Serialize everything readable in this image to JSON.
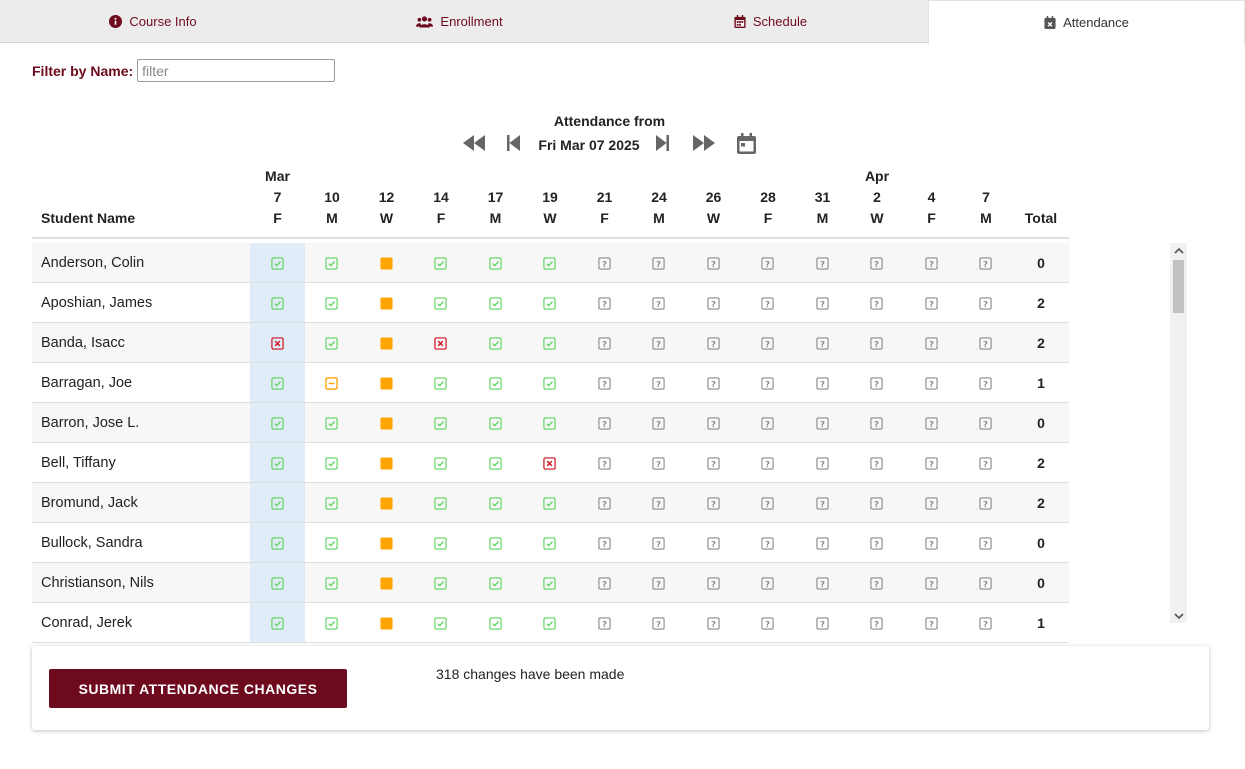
{
  "tabs": [
    {
      "label": "Course Info",
      "icon": "info-circle-icon"
    },
    {
      "label": "Enrollment",
      "icon": "users-icon"
    },
    {
      "label": "Schedule",
      "icon": "calendar-icon"
    },
    {
      "label": "Attendance",
      "icon": "calendar-x-icon",
      "active": true
    }
  ],
  "filter": {
    "label": "Filter by Name:",
    "placeholder": "filter",
    "value": ""
  },
  "nav": {
    "title": "Attendance from",
    "date": "Fri Mar 07 2025"
  },
  "table": {
    "name_header": "Student Name",
    "total_header": "Total",
    "dates": [
      {
        "month": "Mar",
        "day": "7",
        "dow": "F"
      },
      {
        "month": "",
        "day": "10",
        "dow": "M"
      },
      {
        "month": "",
        "day": "12",
        "dow": "W"
      },
      {
        "month": "",
        "day": "14",
        "dow": "F"
      },
      {
        "month": "",
        "day": "17",
        "dow": "M"
      },
      {
        "month": "",
        "day": "19",
        "dow": "W"
      },
      {
        "month": "",
        "day": "21",
        "dow": "F"
      },
      {
        "month": "",
        "day": "24",
        "dow": "M"
      },
      {
        "month": "",
        "day": "26",
        "dow": "W"
      },
      {
        "month": "",
        "day": "28",
        "dow": "F"
      },
      {
        "month": "",
        "day": "31",
        "dow": "M"
      },
      {
        "month": "Apr",
        "day": "2",
        "dow": "W"
      },
      {
        "month": "",
        "day": "4",
        "dow": "F"
      },
      {
        "month": "",
        "day": "7",
        "dow": "M"
      }
    ],
    "rows": [
      {
        "name": "Anderson, Colin",
        "cells": [
          "P",
          "P",
          "H",
          "P",
          "P",
          "P",
          "U",
          "U",
          "U",
          "U",
          "U",
          "U",
          "U",
          "U"
        ],
        "total": "0"
      },
      {
        "name": "Aposhian, James",
        "cells": [
          "P",
          "P",
          "H",
          "P",
          "P",
          "P",
          "U",
          "U",
          "U",
          "U",
          "U",
          "U",
          "U",
          "U"
        ],
        "total": "2"
      },
      {
        "name": "Banda, Isacc",
        "cells": [
          "A",
          "P",
          "H",
          "A",
          "P",
          "P",
          "U",
          "U",
          "U",
          "U",
          "U",
          "U",
          "U",
          "U"
        ],
        "total": "2"
      },
      {
        "name": "Barragan, Joe",
        "cells": [
          "P",
          "T",
          "H",
          "P",
          "P",
          "P",
          "U",
          "U",
          "U",
          "U",
          "U",
          "U",
          "U",
          "U"
        ],
        "total": "1"
      },
      {
        "name": "Barron, Jose L.",
        "cells": [
          "P",
          "P",
          "H",
          "P",
          "P",
          "P",
          "U",
          "U",
          "U",
          "U",
          "U",
          "U",
          "U",
          "U"
        ],
        "total": "0"
      },
      {
        "name": "Bell, Tiffany",
        "cells": [
          "P",
          "P",
          "H",
          "P",
          "P",
          "A",
          "U",
          "U",
          "U",
          "U",
          "U",
          "U",
          "U",
          "U"
        ],
        "total": "2"
      },
      {
        "name": "Bromund, Jack",
        "cells": [
          "P",
          "P",
          "H",
          "P",
          "P",
          "P",
          "U",
          "U",
          "U",
          "U",
          "U",
          "U",
          "U",
          "U"
        ],
        "total": "2"
      },
      {
        "name": "Bullock, Sandra",
        "cells": [
          "P",
          "P",
          "H",
          "P",
          "P",
          "P",
          "U",
          "U",
          "U",
          "U",
          "U",
          "U",
          "U",
          "U"
        ],
        "total": "0"
      },
      {
        "name": "Christianson, Nils",
        "cells": [
          "P",
          "P",
          "H",
          "P",
          "P",
          "P",
          "U",
          "U",
          "U",
          "U",
          "U",
          "U",
          "U",
          "U"
        ],
        "total": "0"
      },
      {
        "name": "Conrad, Jerek",
        "cells": [
          "P",
          "P",
          "H",
          "P",
          "P",
          "P",
          "U",
          "U",
          "U",
          "U",
          "U",
          "U",
          "U",
          "U"
        ],
        "total": "1"
      }
    ]
  },
  "submit": {
    "label": "SUBMIT ATTENDANCE CHANGES",
    "status": "318 changes have been made"
  },
  "colors": {
    "brand": "#6e0a1e",
    "present": "#5ad35a",
    "absent": "#d0101d",
    "tardy": "#ff9f00",
    "holiday": "#ffa500",
    "unknown": "#8a8a8a",
    "selected_column": "#e0edf9"
  }
}
